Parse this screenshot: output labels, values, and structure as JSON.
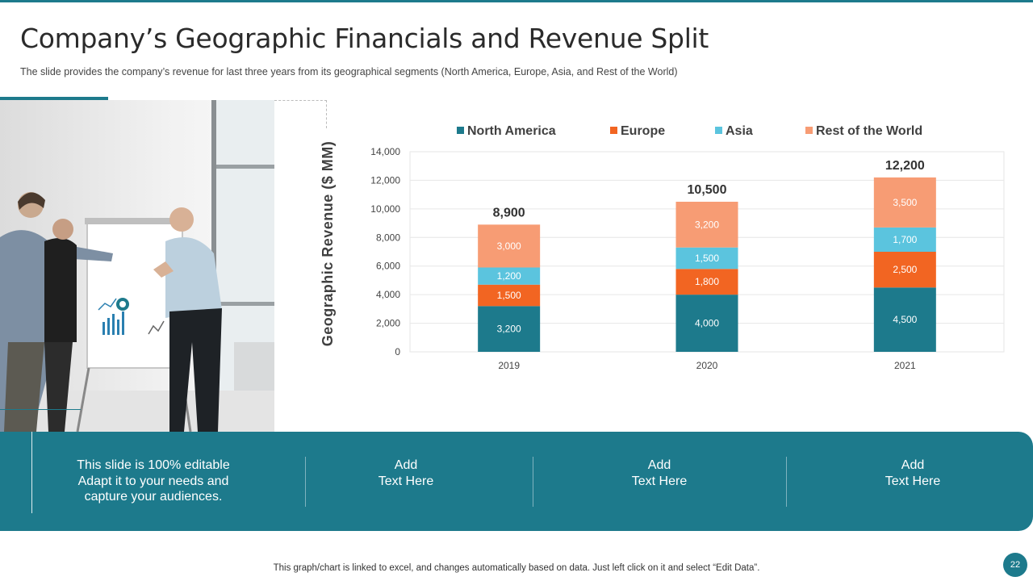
{
  "slide": {
    "title": "Company’s Geographic Financials and Revenue Split",
    "subtitle": "The slide provides  the company’s revenue  for last three years from  its geographical  segments (North  America, Europe,  Asia, and Rest of the World)",
    "page_number": "22",
    "footer_note": "This graph/chart is linked to excel,  and changes automatically based on data. Just left click on it and select “Edit Data”.",
    "banner": {
      "cells": [
        {
          "lines": [
            "This slide is 100% editable",
            "Adapt it to your needs and",
            "capture your audiences."
          ]
        },
        {
          "lines": [
            "Add",
            "Text Here"
          ]
        },
        {
          "lines": [
            "Add",
            "Text Here"
          ]
        },
        {
          "lines": [
            "Add",
            "Text Here"
          ]
        }
      ]
    }
  },
  "colors": {
    "accent": "#1d7a8c",
    "north_america": "#1d7a8c",
    "europe": "#f26522",
    "asia": "#5bc4de",
    "rest_of_world": "#f79c74"
  },
  "chart_data": {
    "type": "bar",
    "stacked": true,
    "ylabel": "Geographic Revenue ($ MM)",
    "ylim": [
      0,
      14000
    ],
    "yticks": [
      "0",
      "2,000",
      "4,000",
      "6,000",
      "8,000",
      "10,000",
      "12,000",
      "14,000"
    ],
    "categories": [
      "2019",
      "2020",
      "2021"
    ],
    "totals": [
      "8,900",
      "10,500",
      "12,200"
    ],
    "legend_position": "top",
    "grid": true,
    "series": [
      {
        "name": "North America",
        "values": [
          3200,
          4000,
          4500
        ],
        "labels": [
          "3,200",
          "4,000",
          "4,500"
        ],
        "color": "#1d7a8c"
      },
      {
        "name": "Europe",
        "values": [
          1500,
          1800,
          2500
        ],
        "labels": [
          "1,500",
          "1,800",
          "2,500"
        ],
        "color": "#f26522"
      },
      {
        "name": "Asia",
        "values": [
          1200,
          1500,
          1700
        ],
        "labels": [
          "1,200",
          "1,500",
          "1,700"
        ],
        "color": "#5bc4de"
      },
      {
        "name": "Rest of the World",
        "values": [
          3000,
          3200,
          3500
        ],
        "labels": [
          "3,000",
          "3,200",
          "3,500"
        ],
        "color": "#f79c74"
      }
    ]
  }
}
